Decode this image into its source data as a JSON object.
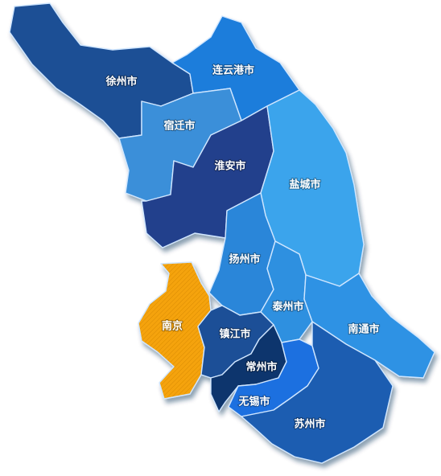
{
  "regions": [
    {
      "id": "xuzhou",
      "name": "徐州市",
      "color": "#1c4f95"
    },
    {
      "id": "lianyungang",
      "name": "连云港市",
      "color": "#1f7ddb"
    },
    {
      "id": "suqian",
      "name": "宿迁市",
      "color": "#3b8fd9"
    },
    {
      "id": "huaian",
      "name": "淮安市",
      "color": "#203f8c"
    },
    {
      "id": "yancheng",
      "name": "盐城市",
      "color": "#3aa4ec"
    },
    {
      "id": "yangzhou",
      "name": "扬州市",
      "color": "#2a86d9"
    },
    {
      "id": "taizhou",
      "name": "泰州市",
      "color": "#2d90e0"
    },
    {
      "id": "nantong",
      "name": "南通市",
      "color": "#2e92e4"
    },
    {
      "id": "nanjing",
      "name": "南京",
      "color": "#f5a30f"
    },
    {
      "id": "zhenjiang",
      "name": "镇江市",
      "color": "#1b4f97"
    },
    {
      "id": "changzhou",
      "name": "常州市",
      "color": "#0f356d"
    },
    {
      "id": "wuxi",
      "name": "无锡市",
      "color": "#1f6fe0"
    },
    {
      "id": "suzhou",
      "name": "苏州市",
      "color": "#1a5db1"
    }
  ]
}
